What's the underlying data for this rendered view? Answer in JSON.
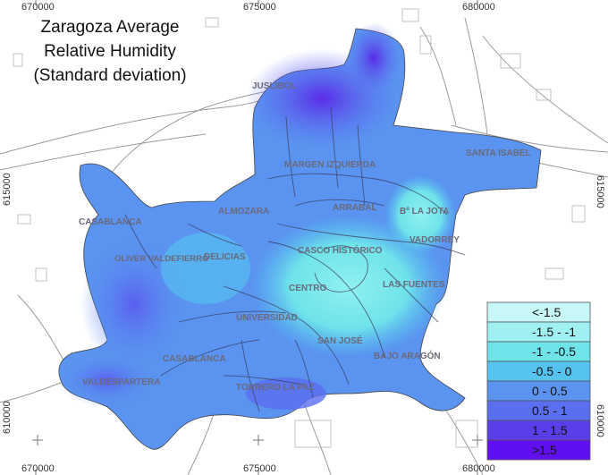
{
  "title": {
    "lines": [
      "Zaragoza Average",
      "Relative Humidity",
      "(Standard deviation)"
    ]
  },
  "coordinates": {
    "top": [
      "670000",
      "675000",
      "680000"
    ],
    "bottom": [
      "670000",
      "675000",
      "680000"
    ],
    "left": [
      "615000",
      "610000"
    ],
    "right": [
      "615000",
      "610000"
    ]
  },
  "districts": [
    "JUSLIBOL",
    "MARGEN IZQUIERDA",
    "SANTA ISABEL",
    "ALMOZARA",
    "ARRABAL",
    "Bº LA JOTA",
    "VADORREY",
    "CASABLANCA",
    "OLIVER VALDEFIERRO",
    "DELICIAS",
    "CASCO HISTÓRICO",
    "LAS FUENTES",
    "CENTRO",
    "UNIVERSIDAD",
    "SAN JOSÉ",
    "BAJO ARAGÓN",
    "CASABLANCA",
    "TORRERO LA PAZ",
    "VALDESPARTERA"
  ],
  "legend": {
    "items": [
      {
        "label": "<-1.5",
        "color": "#c8f7f7"
      },
      {
        "label": "-1.5 - -1",
        "color": "#9ff0f0"
      },
      {
        "label": "-1 - -0.5",
        "color": "#6ee3ea"
      },
      {
        "label": "-0.5 - 0",
        "color": "#55c3f0"
      },
      {
        "label": "0 - 0.5",
        "color": "#5a93f0"
      },
      {
        "label": "0.5 - 1",
        "color": "#5a6ef0"
      },
      {
        "label": "1 - 1.5",
        "color": "#5a3ee8"
      },
      {
        "label": ">1.5",
        "color": "#6010f0"
      }
    ]
  }
}
